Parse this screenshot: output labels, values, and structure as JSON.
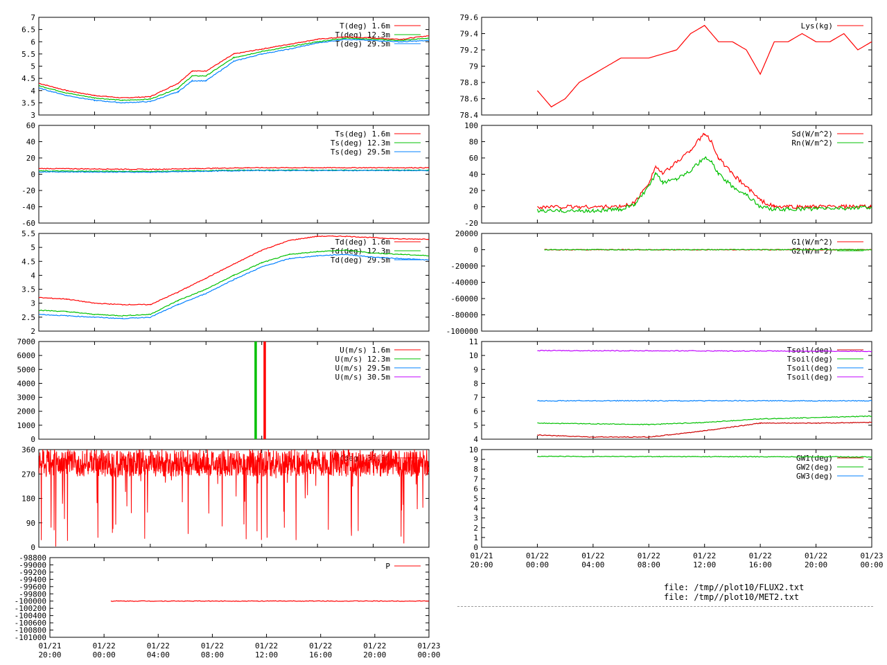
{
  "footer": {
    "files": [
      "file: /tmp//plot10/FLUX2.txt",
      "file: /tmp//plot10/MET2.txt"
    ]
  },
  "colors": {
    "red": "#ff0000",
    "green": "#00c000",
    "blue": "#0080ff",
    "magenta": "#c000ff",
    "darkred": "#cc0000"
  },
  "chart_data": [
    {
      "id": "T",
      "type": "line",
      "yticks": [
        "3",
        "3.5",
        "4",
        "4.5",
        "5",
        "5.5",
        "6",
        "6.5",
        "7"
      ],
      "ylim": [
        3,
        7
      ],
      "legend": [
        "T(deg)  1.6m",
        "T(deg) 12.3m",
        "T(deg) 29.5m"
      ],
      "series": [
        {
          "name": "T(deg)  1.6m",
          "x": [
            0,
            2,
            4,
            6,
            8,
            10,
            11,
            12,
            14,
            16,
            18,
            20,
            22,
            24,
            26,
            28
          ],
          "values": [
            4.3,
            4.0,
            3.8,
            3.7,
            3.75,
            4.3,
            4.8,
            4.8,
            5.5,
            5.7,
            5.9,
            6.1,
            6.2,
            6.15,
            6.1,
            6.25
          ]
        },
        {
          "name": "T(deg) 12.3m",
          "x": [
            0,
            2,
            4,
            6,
            8,
            10,
            11,
            12,
            14,
            16,
            18,
            20,
            22,
            24,
            26,
            28
          ],
          "values": [
            4.2,
            3.9,
            3.7,
            3.6,
            3.65,
            4.1,
            4.6,
            4.6,
            5.35,
            5.6,
            5.8,
            6.0,
            6.15,
            6.1,
            6.05,
            6.15
          ]
        },
        {
          "name": "T(deg) 29.5m",
          "x": [
            0,
            2,
            4,
            6,
            8,
            10,
            11,
            12,
            14,
            16,
            18,
            20,
            22,
            24,
            26,
            28
          ],
          "values": [
            4.1,
            3.8,
            3.6,
            3.5,
            3.55,
            3.95,
            4.4,
            4.4,
            5.2,
            5.5,
            5.7,
            5.95,
            6.1,
            6.05,
            6.0,
            6.05
          ]
        }
      ]
    },
    {
      "id": "Ts",
      "type": "line",
      "yticks": [
        "-60",
        "-40",
        "-20",
        "0",
        "20",
        "40",
        "60"
      ],
      "ylim": [
        -60,
        60
      ],
      "legend": [
        "Ts(deg)  1.6m",
        "Ts(deg) 12.3m",
        "Ts(deg) 29.5m"
      ],
      "series": [
        {
          "name": "Ts(deg)  1.6m",
          "x": [
            0,
            8,
            15,
            28
          ],
          "values": [
            7,
            6,
            8,
            8
          ]
        },
        {
          "name": "Ts(deg) 12.3m",
          "x": [
            0,
            8,
            15,
            28
          ],
          "values": [
            4,
            3.5,
            5,
            5
          ]
        },
        {
          "name": "Ts(deg) 29.5m",
          "x": [
            0,
            8,
            15,
            28
          ],
          "values": [
            3,
            2.5,
            4.5,
            4.5
          ]
        }
      ]
    },
    {
      "id": "Td",
      "type": "line",
      "yticks": [
        "2",
        "2.5",
        "3",
        "3.5",
        "4",
        "4.5",
        "5",
        "5.5"
      ],
      "ylim": [
        2,
        5.5
      ],
      "legend": [
        "Td(deg)  1.6m",
        "Td(deg) 12.3m",
        "Td(deg) 29.5m"
      ],
      "series": [
        {
          "name": "Td(deg)  1.6m",
          "x": [
            0,
            2,
            4,
            6,
            8,
            10,
            12,
            14,
            16,
            18,
            20,
            22,
            24,
            26,
            28
          ],
          "values": [
            3.2,
            3.15,
            3.0,
            2.95,
            2.95,
            3.4,
            3.9,
            4.4,
            4.9,
            5.25,
            5.4,
            5.4,
            5.35,
            5.3,
            5.3
          ]
        },
        {
          "name": "Td(deg) 12.3m",
          "x": [
            0,
            2,
            4,
            6,
            8,
            10,
            12,
            14,
            16,
            18,
            20,
            22,
            24,
            26,
            28
          ],
          "values": [
            2.75,
            2.7,
            2.6,
            2.55,
            2.6,
            3.1,
            3.5,
            4.0,
            4.45,
            4.75,
            4.85,
            4.9,
            4.8,
            4.75,
            4.7
          ]
        },
        {
          "name": "Td(deg) 29.5m",
          "x": [
            0,
            2,
            4,
            6,
            8,
            10,
            12,
            14,
            16,
            18,
            20,
            22,
            24,
            26,
            28
          ],
          "values": [
            2.6,
            2.55,
            2.5,
            2.45,
            2.5,
            2.95,
            3.35,
            3.85,
            4.3,
            4.6,
            4.7,
            4.75,
            4.65,
            4.6,
            4.55
          ]
        }
      ]
    },
    {
      "id": "U",
      "type": "line",
      "yticks": [
        "0",
        "1000",
        "2000",
        "3000",
        "4000",
        "5000",
        "6000",
        "7000"
      ],
      "ylim": [
        0,
        7000
      ],
      "legend": [
        "U(m/s)  1.6m",
        "U(m/s) 12.3m",
        "U(m/s) 29.5m",
        "U(m/s) 30.5m"
      ],
      "spikes": [
        {
          "x": 15.55,
          "values": 7000,
          "series": "U(m/s) 12.3m"
        },
        {
          "x": 16.2,
          "values": 7000,
          "series": "U(m/s)  1.6m"
        }
      ]
    },
    {
      "id": "D",
      "type": "line",
      "yticks": [
        "0",
        "90",
        "180",
        "270",
        "360"
      ],
      "ylim": [
        0,
        360
      ],
      "legend": [
        "D(deg) 30.5m"
      ],
      "series": [
        {
          "name": "D(deg) 30.5m",
          "band": [
            260,
            360
          ]
        }
      ]
    },
    {
      "id": "P",
      "type": "line",
      "yticks": [
        "-98800",
        "-99000",
        "-99200",
        "-99400",
        "-99600",
        "-99800",
        "-100000",
        "-100200",
        "-100400",
        "-100600",
        "-100800",
        "-101000"
      ],
      "ylim": [
        -101000,
        -98800
      ],
      "legend": [
        "P"
      ],
      "series": [
        {
          "name": "P",
          "x": [
            4.5,
            28
          ],
          "values": [
            -100000,
            -100000
          ]
        }
      ]
    },
    {
      "id": "Lys",
      "type": "line",
      "yticks": [
        "78.4",
        "78.6",
        "78.8",
        "79",
        "79.2",
        "79.4",
        "79.6"
      ],
      "ylim": [
        78.4,
        79.6
      ],
      "legend": [
        "Lys(kg)"
      ],
      "series": [
        {
          "name": "Lys(kg)",
          "x": [
            4,
            4.5,
            5,
            6,
            7,
            8,
            9,
            10,
            12,
            14,
            15,
            16,
            17,
            18,
            19,
            20,
            21,
            22,
            23,
            24,
            25,
            26,
            27,
            28
          ],
          "values": [
            78.7,
            78.6,
            78.5,
            78.6,
            78.8,
            78.9,
            79.0,
            79.1,
            79.1,
            79.2,
            79.4,
            79.5,
            79.3,
            79.3,
            79.2,
            78.9,
            79.3,
            79.3,
            79.4,
            79.3,
            79.3,
            79.4,
            79.2,
            79.3
          ]
        }
      ]
    },
    {
      "id": "Rad",
      "type": "line",
      "yticks": [
        "-20",
        "0",
        "20",
        "40",
        "60",
        "80",
        "100"
      ],
      "ylim": [
        -20,
        100
      ],
      "legend": [
        "Sd(W/m^2)",
        "Rn(W/m^2)"
      ],
      "series": [
        {
          "name": "Sd(W/m^2)",
          "x": [
            4,
            10,
            11,
            12,
            12.5,
            13,
            14,
            15,
            16,
            16.5,
            17,
            18,
            19,
            20,
            21,
            22,
            28
          ],
          "values": [
            0,
            0,
            5,
            30,
            50,
            40,
            55,
            70,
            90,
            80,
            60,
            40,
            25,
            8,
            0,
            0,
            0
          ]
        },
        {
          "name": "Rn(W/m^2)",
          "x": [
            4,
            8,
            10,
            11,
            12,
            12.5,
            13,
            14,
            15,
            16,
            16.5,
            17,
            18,
            19,
            20,
            21,
            22,
            28
          ],
          "values": [
            -5,
            -5,
            -3,
            3,
            25,
            40,
            30,
            35,
            45,
            60,
            55,
            40,
            25,
            15,
            0,
            -3,
            -3,
            -1
          ]
        }
      ]
    },
    {
      "id": "G",
      "type": "line",
      "yticks": [
        "-100000",
        "-80000",
        "-60000",
        "-40000",
        "-20000",
        "0",
        "20000"
      ],
      "ylim": [
        -100000,
        20000
      ],
      "legend": [
        "G1(W/m^2)",
        "G2(W/m^2)"
      ],
      "series": [
        {
          "name": "G1(W/m^2)",
          "x": [
            4.5,
            28
          ],
          "values": [
            0,
            0
          ]
        },
        {
          "name": "G2(W/m^2)",
          "x": [
            4.5,
            28
          ],
          "values": [
            0,
            0
          ]
        }
      ]
    },
    {
      "id": "Tsoil",
      "type": "line",
      "yticks": [
        "4",
        "5",
        "6",
        "7",
        "8",
        "9",
        "10",
        "11"
      ],
      "ylim": [
        4,
        11
      ],
      "legend": [
        "Tsoil(deg)",
        "Tsoil(deg)",
        "Tsoil(deg)",
        "Tsoil(deg)"
      ],
      "series": [
        {
          "name": "Tsoil(deg)",
          "x": [
            4,
            8,
            12,
            16,
            20,
            24,
            28
          ],
          "values": [
            4.3,
            4.15,
            4.15,
            4.6,
            5.15,
            5.15,
            5.2
          ]
        },
        {
          "name": "Tsoil(deg)",
          "x": [
            4,
            8,
            12,
            16,
            20,
            24,
            28
          ],
          "values": [
            5.15,
            5.1,
            5.05,
            5.2,
            5.45,
            5.55,
            5.65
          ]
        },
        {
          "name": "Tsoil(deg)",
          "x": [
            4,
            28
          ],
          "values": [
            6.75,
            6.75
          ]
        },
        {
          "name": "Tsoil(deg)",
          "x": [
            4,
            28
          ],
          "values": [
            10.35,
            10.3
          ]
        }
      ]
    },
    {
      "id": "GW",
      "type": "line",
      "yticks": [
        "0",
        "1",
        "2",
        "3",
        "4",
        "5",
        "6",
        "7",
        "8",
        "9",
        "10"
      ],
      "ylim": [
        0,
        10
      ],
      "legend": [
        "GW1(deg)",
        "GW2(deg)",
        "GW3(deg)"
      ],
      "series": [
        {
          "name": "GW2(deg)",
          "x": [
            4,
            28
          ],
          "values": [
            9.3,
            9.25
          ]
        }
      ]
    }
  ],
  "xaxis": {
    "ticks_left": [
      [
        "01/21",
        "20:00"
      ],
      [
        "01/22",
        "00:00"
      ],
      [
        "01/22",
        "04:00"
      ],
      [
        "01/22",
        "08:00"
      ],
      [
        "01/22",
        "12:00"
      ],
      [
        "01/22",
        "16:00"
      ],
      [
        "01/22",
        "20:00"
      ],
      [
        "01/23",
        "00:00"
      ]
    ],
    "ticks_right": [
      [
        "01/21",
        "20:00"
      ],
      [
        "01/22",
        "00:00"
      ],
      [
        "01/22",
        "04:00"
      ],
      [
        "01/22",
        "08:00"
      ],
      [
        "01/22",
        "12:00"
      ],
      [
        "01/22",
        "16:00"
      ],
      [
        "01/22",
        "20:00"
      ],
      [
        "01/23",
        "00:00"
      ]
    ]
  }
}
